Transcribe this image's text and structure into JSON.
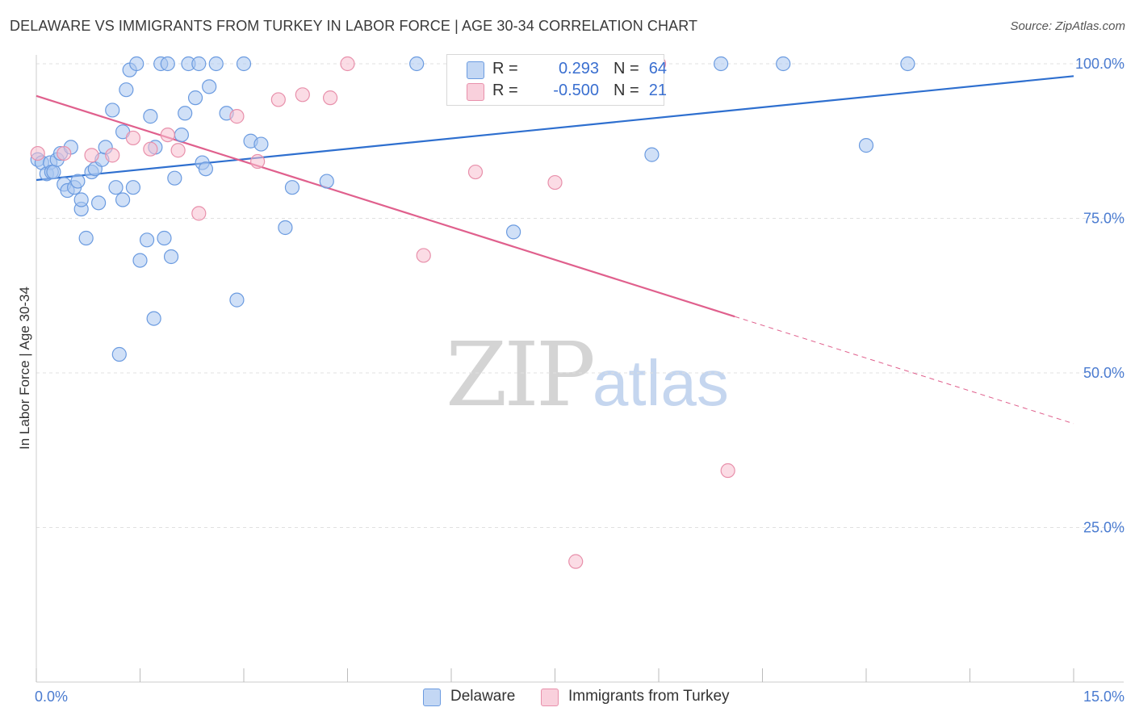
{
  "title": "DELAWARE VS IMMIGRANTS FROM TURKEY IN LABOR FORCE | AGE 30-34 CORRELATION CHART",
  "source": "Source: ZipAtlas.com",
  "watermark": {
    "zip": "ZIP",
    "atlas": "atlas"
  },
  "legend": {
    "delaware": {
      "r_label": "R =",
      "r_value": "0.293",
      "n_label": "N =",
      "n_value": "64"
    },
    "turkey": {
      "r_label": "R =",
      "r_value": "-0.500",
      "n_label": "N =",
      "n_value": "21"
    }
  },
  "bottom_legend": {
    "delaware": "Delaware",
    "turkey": "Immigrants from Turkey"
  },
  "colors": {
    "delaware_fill": "#a9c6f0",
    "delaware_stroke": "#6b9be0",
    "delaware_line": "#2e6fcf",
    "turkey_fill": "#f7bfd0",
    "turkey_stroke": "#e890ab",
    "turkey_line": "#e0608d",
    "tick_label": "#4a7bd0",
    "grid": "#e0e0e0"
  },
  "chart_data": {
    "type": "scatter",
    "title": "DELAWARE VS IMMIGRANTS FROM TURKEY IN LABOR FORCE | AGE 30-34 CORRELATION CHART",
    "xlabel": "",
    "ylabel": "In Labor Force | Age 30-34",
    "xlim": [
      0,
      15
    ],
    "ylim": [
      0,
      105
    ],
    "x_tick_labels": [
      {
        "value": 0,
        "label": "0.0%"
      },
      {
        "value": 15,
        "label": "15.0%"
      }
    ],
    "y_tick_labels": [
      {
        "value": 25,
        "label": "25.0%"
      },
      {
        "value": 50,
        "label": "50.0%"
      },
      {
        "value": 75,
        "label": "75.0%"
      },
      {
        "value": 100,
        "label": "100.0%"
      }
    ],
    "series": [
      {
        "name": "Delaware",
        "R": 0.293,
        "N": 64,
        "trend": {
          "x": [
            0,
            15
          ],
          "y": [
            81.2,
            98.0
          ],
          "dashed_from": null
        },
        "points": [
          [
            0.02,
            84.5
          ],
          [
            0.08,
            84.0
          ],
          [
            0.15,
            82.2
          ],
          [
            0.2,
            84.0
          ],
          [
            0.22,
            82.5
          ],
          [
            0.25,
            82.5
          ],
          [
            0.3,
            84.5
          ],
          [
            0.35,
            85.5
          ],
          [
            0.4,
            80.5
          ],
          [
            0.45,
            79.5
          ],
          [
            0.5,
            86.5
          ],
          [
            0.55,
            80.0
          ],
          [
            0.6,
            81.0
          ],
          [
            0.65,
            76.5
          ],
          [
            0.65,
            78.0
          ],
          [
            0.72,
            71.8
          ],
          [
            0.8,
            82.5
          ],
          [
            0.85,
            83.0
          ],
          [
            0.9,
            77.5
          ],
          [
            0.95,
            84.5
          ],
          [
            1.0,
            86.5
          ],
          [
            1.1,
            92.5
          ],
          [
            1.15,
            80.0
          ],
          [
            1.2,
            53.0
          ],
          [
            1.25,
            89.0
          ],
          [
            1.25,
            78.0
          ],
          [
            1.3,
            95.8
          ],
          [
            1.35,
            99.0
          ],
          [
            1.4,
            80.0
          ],
          [
            1.45,
            100.0
          ],
          [
            1.5,
            68.2
          ],
          [
            1.6,
            71.5
          ],
          [
            1.65,
            91.5
          ],
          [
            1.7,
            58.8
          ],
          [
            1.72,
            86.5
          ],
          [
            1.8,
            100.0
          ],
          [
            1.85,
            71.8
          ],
          [
            1.9,
            100.0
          ],
          [
            1.95,
            68.8
          ],
          [
            2.0,
            81.5
          ],
          [
            2.1,
            88.5
          ],
          [
            2.15,
            92.0
          ],
          [
            2.2,
            100.0
          ],
          [
            2.3,
            94.5
          ],
          [
            2.35,
            100.0
          ],
          [
            2.4,
            84.0
          ],
          [
            2.45,
            83.0
          ],
          [
            2.5,
            96.3
          ],
          [
            2.6,
            100.0
          ],
          [
            2.75,
            92.0
          ],
          [
            2.9,
            61.8
          ],
          [
            3.0,
            100.0
          ],
          [
            3.1,
            87.5
          ],
          [
            3.25,
            87.0
          ],
          [
            3.6,
            73.5
          ],
          [
            3.7,
            80.0
          ],
          [
            4.2,
            81.0
          ],
          [
            5.5,
            100.0
          ],
          [
            6.9,
            72.8
          ],
          [
            8.9,
            85.3
          ],
          [
            9.9,
            100.0
          ],
          [
            10.8,
            100.0
          ],
          [
            12.0,
            86.8
          ],
          [
            12.6,
            100.0
          ]
        ]
      },
      {
        "name": "Immigrants from Turkey",
        "R": -0.5,
        "N": 21,
        "trend": {
          "x": [
            0,
            15
          ],
          "y": [
            94.8,
            41.8
          ],
          "dashed_from": 10.1
        },
        "points": [
          [
            0.02,
            85.5
          ],
          [
            0.4,
            85.5
          ],
          [
            0.8,
            85.2
          ],
          [
            1.1,
            85.2
          ],
          [
            1.4,
            88.0
          ],
          [
            1.65,
            86.2
          ],
          [
            1.9,
            88.5
          ],
          [
            2.05,
            86.0
          ],
          [
            2.35,
            75.8
          ],
          [
            2.9,
            91.5
          ],
          [
            3.2,
            84.2
          ],
          [
            3.5,
            94.2
          ],
          [
            3.85,
            95.0
          ],
          [
            4.25,
            94.5
          ],
          [
            4.5,
            100.0
          ],
          [
            5.6,
            69.0
          ],
          [
            6.35,
            82.5
          ],
          [
            7.5,
            80.8
          ],
          [
            7.8,
            19.5
          ],
          [
            9.0,
            100.0
          ],
          [
            10.0,
            34.2
          ]
        ]
      }
    ]
  }
}
